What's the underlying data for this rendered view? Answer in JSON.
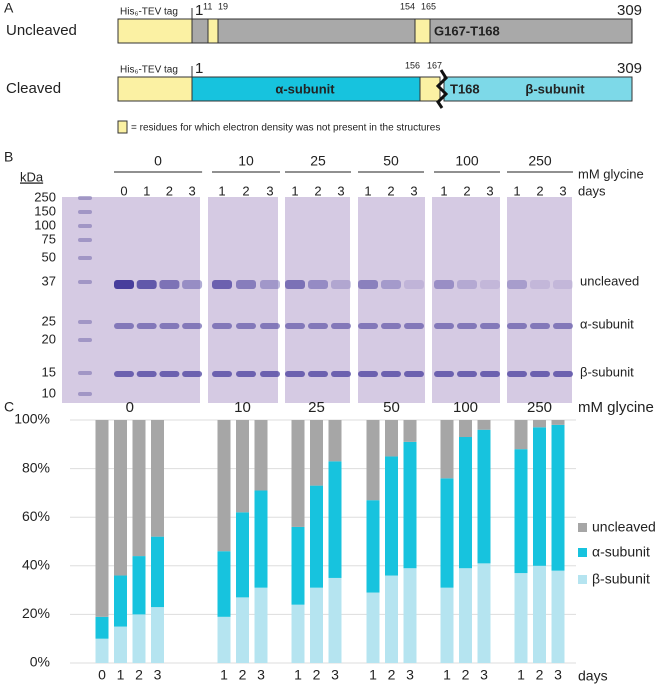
{
  "diagram": {
    "label": "A",
    "uncleaved": {
      "name": "Uncleaved",
      "tag": "His₆-TEV tag",
      "start": "1",
      "end": "309",
      "marks": [
        "11",
        "19",
        "154",
        "165"
      ],
      "junction": "G167-T168"
    },
    "cleaved": {
      "name": "Cleaved",
      "tag": "His₆-TEV tag",
      "start": "1",
      "end": "309",
      "marks": [
        "156",
        "167"
      ],
      "alpha": "α-subunit",
      "junction": "T168",
      "beta": "β-subunit"
    },
    "legend": "= residues for which electron density was not present in the structures"
  },
  "gel": {
    "label": "B",
    "unit": "kDa",
    "ladder": [
      "250",
      "150",
      "100",
      "75",
      "50",
      "37",
      "25",
      "20",
      "15",
      "10"
    ],
    "group_label": "mM glycine",
    "days_label": "days",
    "groups": [
      {
        "name": "0",
        "days": [
          "0",
          "1",
          "2",
          "3"
        ]
      },
      {
        "name": "10",
        "days": [
          "1",
          "2",
          "3"
        ]
      },
      {
        "name": "25",
        "days": [
          "1",
          "2",
          "3"
        ]
      },
      {
        "name": "50",
        "days": [
          "1",
          "2",
          "3"
        ]
      },
      {
        "name": "100",
        "days": [
          "1",
          "2",
          "3"
        ]
      },
      {
        "name": "250",
        "days": [
          "1",
          "2",
          "3"
        ]
      }
    ],
    "bands": [
      "uncleaved",
      "α-subunit",
      "β-subunit"
    ]
  },
  "chart_data": {
    "type": "stacked_bar",
    "label": "C",
    "group_label": "mM glycine",
    "x_label": "days",
    "groups": [
      {
        "name": "0",
        "categories": [
          "0",
          "1",
          "2",
          "3"
        ]
      },
      {
        "name": "10",
        "categories": [
          "1",
          "2",
          "3"
        ]
      },
      {
        "name": "25",
        "categories": [
          "1",
          "2",
          "3"
        ]
      },
      {
        "name": "50",
        "categories": [
          "1",
          "2",
          "3"
        ]
      },
      {
        "name": "100",
        "categories": [
          "1",
          "2",
          "3"
        ]
      },
      {
        "name": "250",
        "categories": [
          "1",
          "2",
          "3"
        ]
      }
    ],
    "series": [
      {
        "name": "uncleaved",
        "color": "#a6a6a6",
        "values": [
          81,
          64,
          56,
          48,
          54,
          38,
          29,
          44,
          27,
          17,
          33,
          15,
          9,
          24,
          7,
          4,
          12,
          3,
          2
        ]
      },
      {
        "name": "α-subunit",
        "color": "#17c3de",
        "values": [
          9,
          21,
          24,
          29,
          27,
          35,
          40,
          32,
          42,
          48,
          38,
          49,
          52,
          45,
          54,
          55,
          51,
          57,
          60
        ]
      },
      {
        "name": "β-subunit",
        "color": "#b5e4f0",
        "values": [
          10,
          15,
          20,
          23,
          19,
          27,
          31,
          24,
          31,
          35,
          29,
          36,
          39,
          31,
          39,
          41,
          37,
          40,
          38
        ]
      }
    ],
    "ylim": [
      0,
      100
    ],
    "yticks": [
      {
        "value": 0,
        "label": "0%"
      },
      {
        "value": 20,
        "label": "20%"
      },
      {
        "value": 40,
        "label": "40%"
      },
      {
        "value": 60,
        "label": "60%"
      },
      {
        "value": 80,
        "label": "80%"
      },
      {
        "value": 100,
        "label": "100%"
      }
    ],
    "grid": true
  }
}
